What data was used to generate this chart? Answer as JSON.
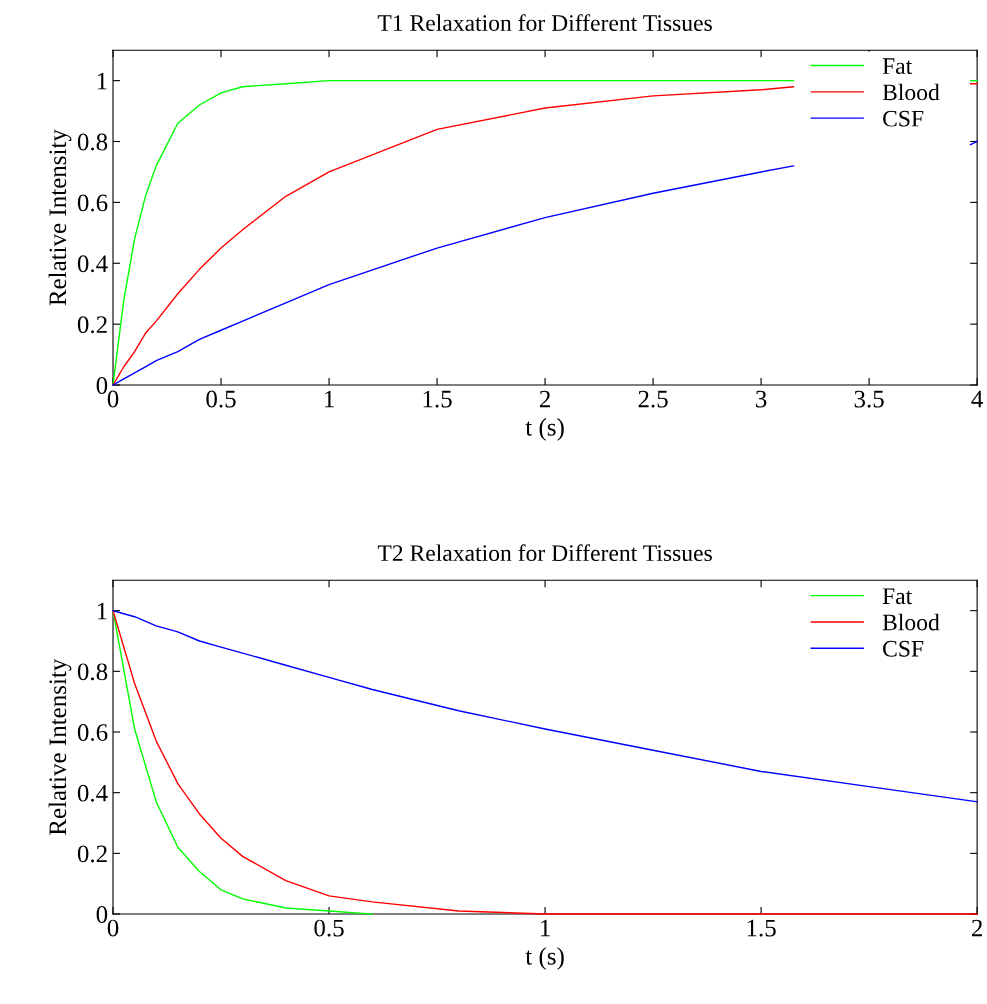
{
  "chart_data": [
    {
      "type": "line",
      "title": "T1 Relaxation for Different Tissues",
      "xlabel": "t (s)",
      "ylabel": "Relative Intensity",
      "x": [
        0,
        0.05,
        0.1,
        0.15,
        0.2,
        0.3,
        0.4,
        0.5,
        0.6,
        0.8,
        1,
        1.5,
        2,
        2.5,
        3,
        3.15,
        3.5,
        3.97,
        4
      ],
      "series": [
        {
          "name": "Fat",
          "color": "#00ff00",
          "values": [
            0,
            0.28,
            0.48,
            0.62,
            0.72,
            0.86,
            0.92,
            0.96,
            0.98,
            0.99,
            1,
            1,
            1,
            1,
            1,
            1,
            null,
            1,
            1
          ]
        },
        {
          "name": "Blood",
          "color": "#ff0000",
          "values": [
            0,
            0.06,
            0.11,
            0.17,
            0.21,
            0.3,
            0.38,
            0.45,
            0.51,
            0.62,
            0.7,
            0.84,
            0.91,
            0.95,
            0.97,
            0.98,
            null,
            0.99,
            0.99
          ]
        },
        {
          "name": "CSF",
          "color": "#0000ff",
          "values": [
            0,
            0.02,
            0.04,
            0.06,
            0.08,
            0.11,
            0.15,
            0.18,
            0.21,
            0.27,
            0.33,
            0.45,
            0.55,
            0.63,
            0.7,
            0.72,
            null,
            0.79,
            0.8
          ]
        }
      ],
      "xlim": [
        0,
        4
      ],
      "ylim": [
        0,
        1.1
      ],
      "xticks": [
        0,
        0.5,
        1,
        1.5,
        2,
        2.5,
        3,
        3.5,
        4
      ],
      "yticks": [
        0,
        0.2,
        0.4,
        0.6,
        0.8,
        1
      ],
      "legend": "top right"
    },
    {
      "type": "line",
      "title": "T2 Relaxation for Different Tissues",
      "xlabel": "t (s)",
      "ylabel": "Relative Intensity",
      "x": [
        0,
        0.05,
        0.1,
        0.15,
        0.2,
        0.25,
        0.3,
        0.4,
        0.5,
        0.6,
        0.8,
        1,
        1.25,
        1.5,
        1.75,
        2
      ],
      "series": [
        {
          "name": "Fat",
          "color": "#00ff00",
          "values": [
            1,
            0.61,
            0.37,
            0.22,
            0.14,
            0.08,
            0.05,
            0.02,
            0.01,
            0,
            null,
            null,
            null,
            null,
            null,
            null
          ]
        },
        {
          "name": "Blood",
          "color": "#ff0000",
          "values": [
            1,
            0.76,
            0.57,
            0.43,
            0.33,
            0.25,
            0.19,
            0.11,
            0.06,
            0.04,
            0.01,
            0,
            0,
            0,
            0,
            0
          ]
        },
        {
          "name": "CSF",
          "color": "#0000ff",
          "values": [
            1,
            0.98,
            0.95,
            0.93,
            0.9,
            0.88,
            0.86,
            0.82,
            0.78,
            0.74,
            0.67,
            0.61,
            0.54,
            0.47,
            0.42,
            0.37
          ]
        }
      ],
      "xlim": [
        0,
        2
      ],
      "ylim": [
        0,
        1.1
      ],
      "xticks": [
        0,
        0.5,
        1,
        1.5,
        2
      ],
      "yticks": [
        0,
        0.2,
        0.4,
        0.6,
        0.8,
        1
      ],
      "legend": "top right"
    }
  ]
}
